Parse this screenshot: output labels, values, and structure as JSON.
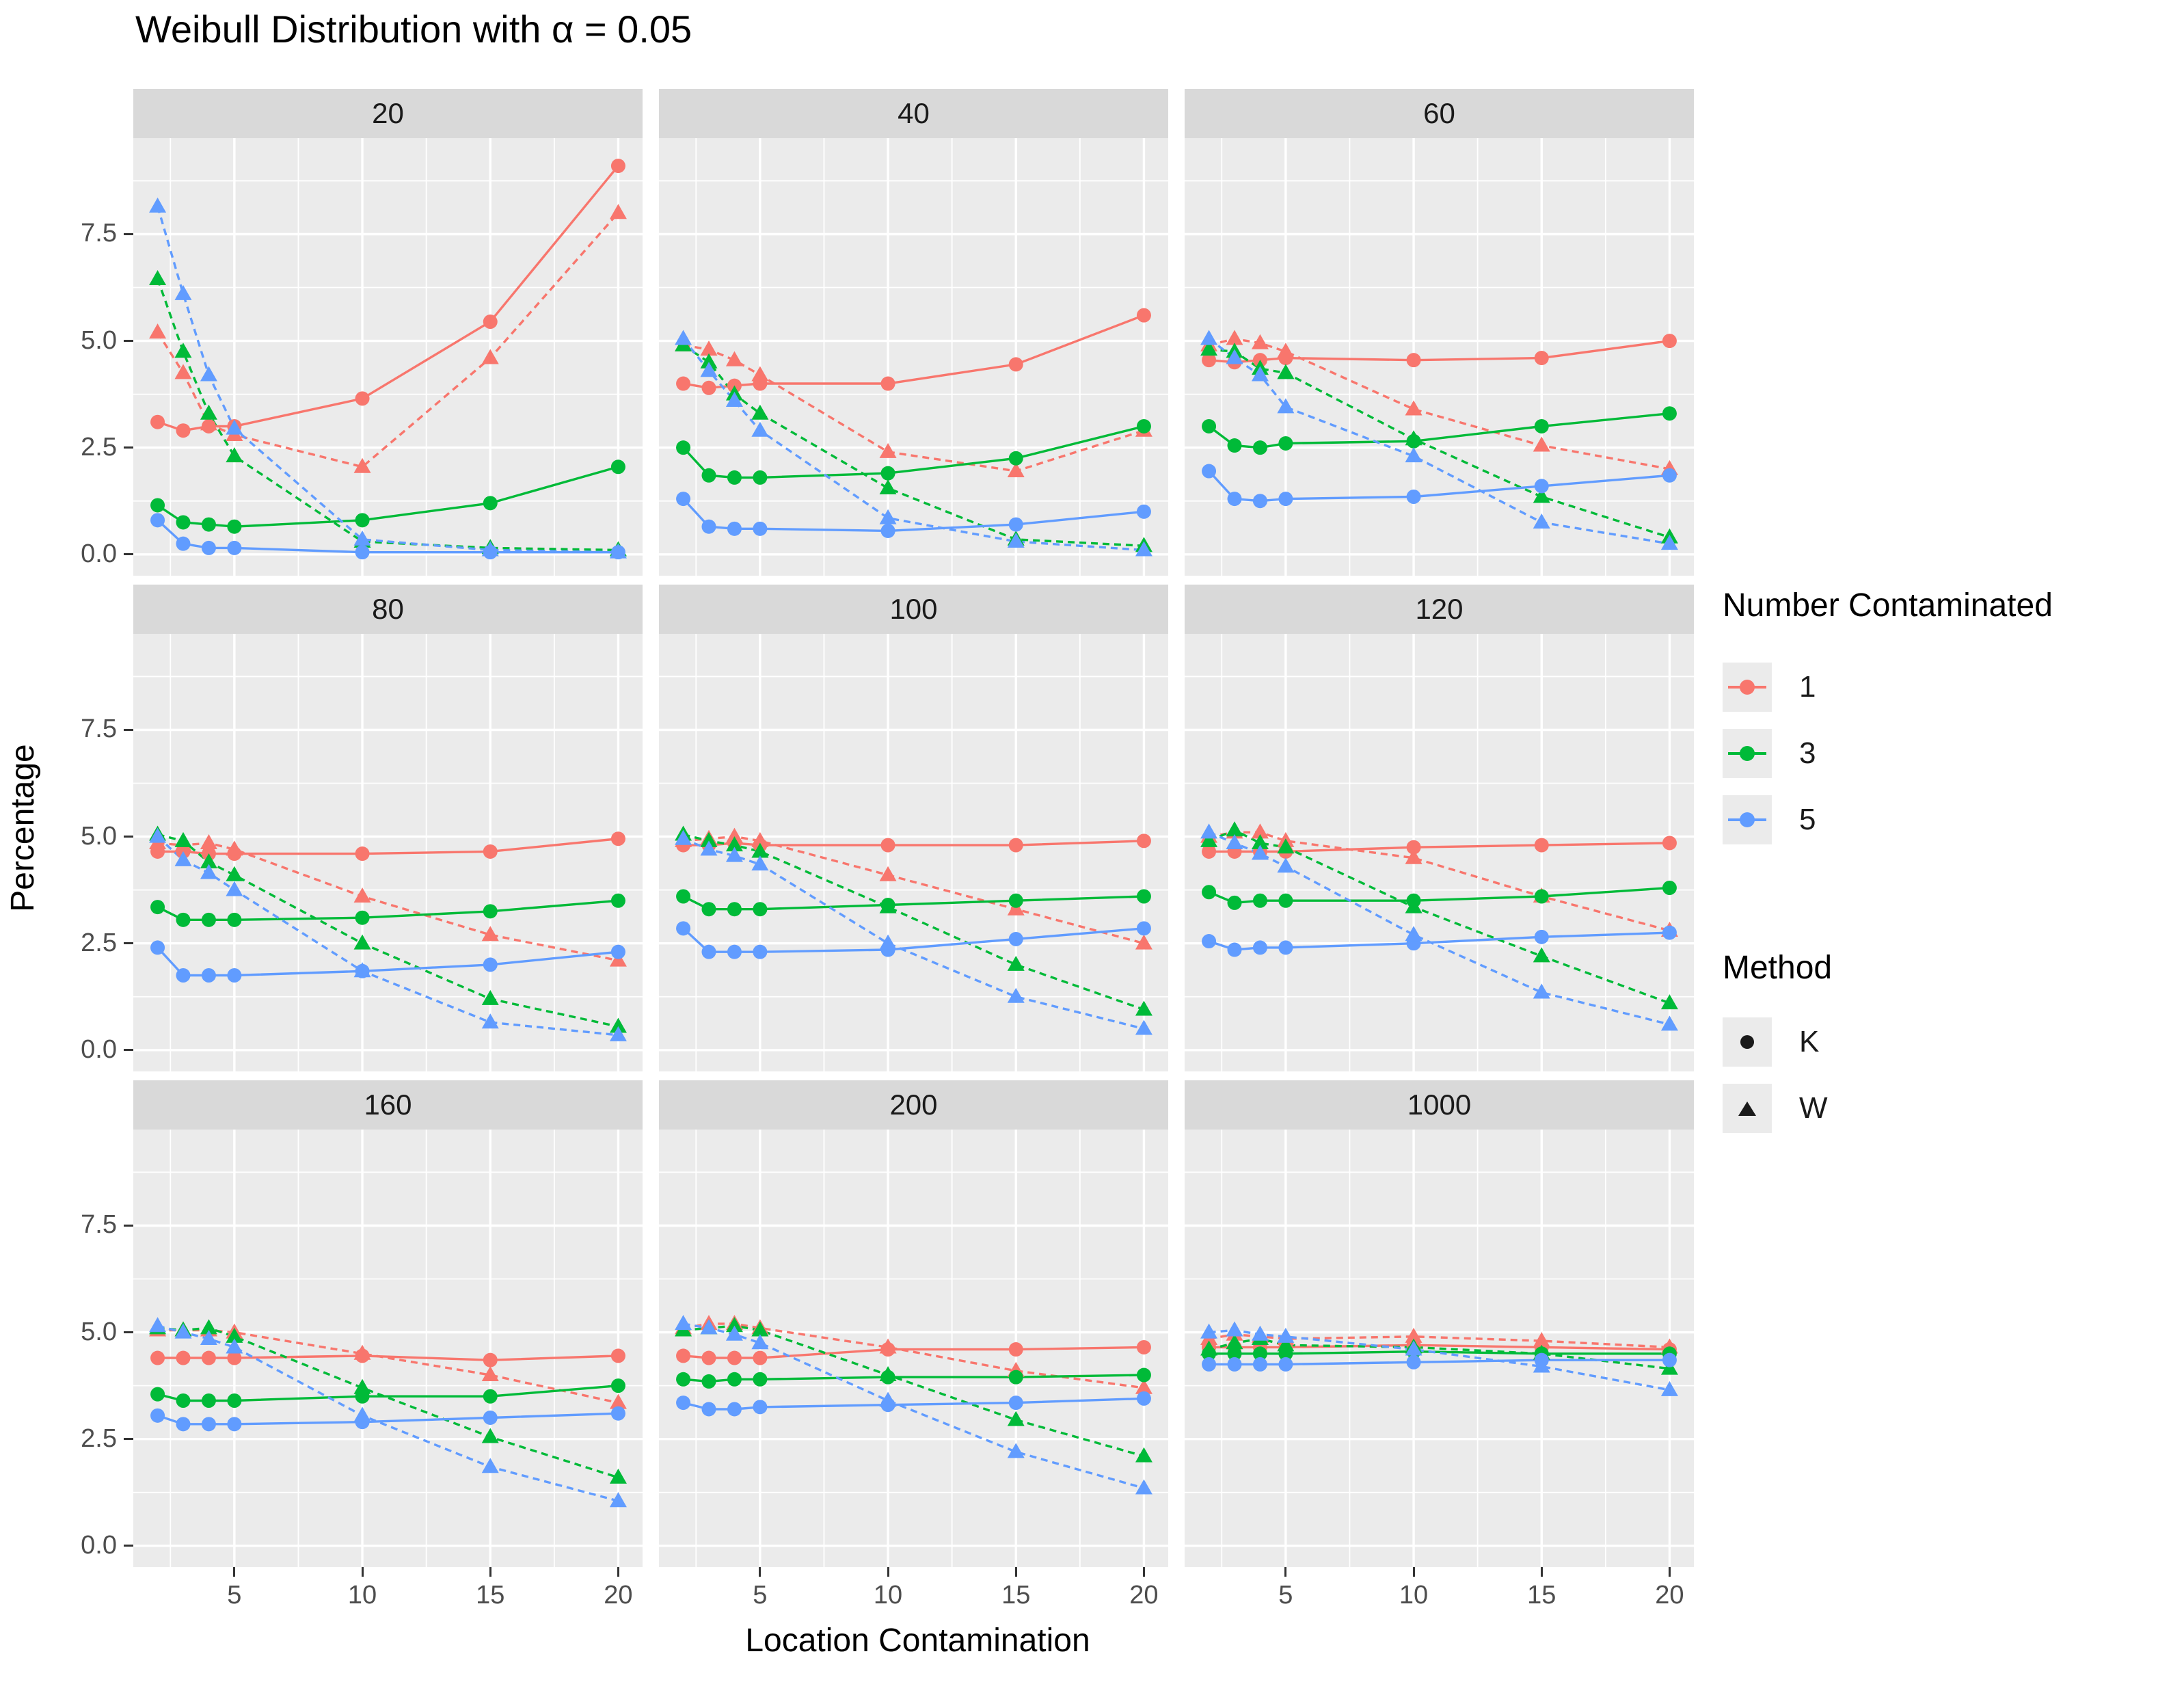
{
  "chart_data": {
    "type": "line",
    "title": "Weibull Distribution with α = 0.05",
    "xlabel": "Location Contamination",
    "ylabel": "Percentage",
    "x": [
      2,
      3,
      4,
      5,
      10,
      15,
      20
    ],
    "x_ticks": [
      5,
      10,
      15,
      20
    ],
    "x_tick_labels": [
      "5",
      "10",
      "15",
      "20"
    ],
    "y_ticks": [
      0.0,
      2.5,
      5.0,
      7.5
    ],
    "y_tick_labels": [
      "0.0",
      "2.5",
      "5.0",
      "7.5"
    ],
    "y_minor_ticks": [
      1.25,
      3.75,
      6.25,
      8.75
    ],
    "x_minor_ticks": [
      2.5,
      7.5,
      12.5,
      17.5
    ],
    "xlim": [
      1.05,
      20.95
    ],
    "ylim": [
      -0.5,
      9.75
    ],
    "grid": "on",
    "panel_bg": "#ebebeb",
    "strip_bg": "#d9d9d9",
    "grid_color": "#ffffff",
    "palette": {
      "1": "#F8766D",
      "3": "#00BA38",
      "5": "#619CFF"
    },
    "methods": {
      "K": {
        "shape": "circle",
        "dash": "none"
      },
      "W": {
        "shape": "triangle",
        "dash": "10 7"
      }
    },
    "series_order": [
      "1K",
      "1W",
      "3K",
      "3W",
      "5K",
      "5W"
    ],
    "legend": {
      "color_group": {
        "title": "Number Contaminated",
        "entries": [
          {
            "label": "1",
            "color": "#F8766D"
          },
          {
            "label": "3",
            "color": "#00BA38"
          },
          {
            "label": "5",
            "color": "#619CFF"
          }
        ]
      },
      "shape_group": {
        "title": "Method",
        "entries": [
          {
            "label": "K",
            "shape": "circle"
          },
          {
            "label": "W",
            "shape": "triangle"
          }
        ]
      }
    },
    "facets": [
      {
        "label": "20",
        "series": {
          "1K": [
            3.1,
            2.9,
            3.0,
            3.0,
            3.65,
            5.45,
            9.1
          ],
          "1W": [
            5.2,
            4.25,
            3.05,
            2.8,
            2.05,
            4.6,
            8.0
          ],
          "3K": [
            1.15,
            0.75,
            0.7,
            0.65,
            0.8,
            1.2,
            2.05
          ],
          "3W": [
            6.45,
            4.75,
            3.3,
            2.3,
            0.3,
            0.15,
            0.1
          ],
          "5K": [
            0.8,
            0.25,
            0.15,
            0.15,
            0.05,
            0.05,
            0.05
          ],
          "5W": [
            8.15,
            6.1,
            4.2,
            2.95,
            0.35,
            0.1,
            0.05
          ]
        }
      },
      {
        "label": "40",
        "series": {
          "1K": [
            4.0,
            3.9,
            3.95,
            4.0,
            4.0,
            4.45,
            5.6
          ],
          "1W": [
            4.9,
            4.8,
            4.55,
            4.2,
            2.4,
            1.95,
            2.9
          ],
          "3K": [
            2.5,
            1.85,
            1.8,
            1.8,
            1.9,
            2.25,
            3.0
          ],
          "3W": [
            4.9,
            4.5,
            3.75,
            3.3,
            1.55,
            0.35,
            0.2
          ],
          "5K": [
            1.3,
            0.65,
            0.6,
            0.6,
            0.55,
            0.7,
            1.0
          ],
          "5W": [
            5.05,
            4.3,
            3.6,
            2.9,
            0.85,
            0.3,
            0.1
          ]
        }
      },
      {
        "label": "60",
        "series": {
          "1K": [
            4.55,
            4.5,
            4.55,
            4.6,
            4.55,
            4.6,
            5.0
          ],
          "1W": [
            4.9,
            5.05,
            4.95,
            4.75,
            3.4,
            2.55,
            2.0
          ],
          "3K": [
            3.0,
            2.55,
            2.5,
            2.6,
            2.65,
            3.0,
            3.3
          ],
          "3W": [
            4.8,
            4.75,
            4.35,
            4.25,
            2.7,
            1.35,
            0.4
          ],
          "5K": [
            1.95,
            1.3,
            1.25,
            1.3,
            1.35,
            1.6,
            1.85
          ],
          "5W": [
            5.05,
            4.6,
            4.2,
            3.45,
            2.3,
            0.75,
            0.25
          ]
        }
      },
      {
        "label": "80",
        "series": {
          "1K": [
            4.65,
            4.65,
            4.6,
            4.6,
            4.6,
            4.65,
            4.95
          ],
          "1W": [
            4.85,
            4.8,
            4.85,
            4.7,
            3.6,
            2.7,
            2.1
          ],
          "3K": [
            3.35,
            3.05,
            3.05,
            3.05,
            3.1,
            3.25,
            3.5
          ],
          "3W": [
            5.05,
            4.9,
            4.4,
            4.1,
            2.5,
            1.2,
            0.55
          ],
          "5K": [
            2.4,
            1.75,
            1.75,
            1.75,
            1.85,
            2.0,
            2.3
          ],
          "5W": [
            5.0,
            4.45,
            4.15,
            3.75,
            1.85,
            0.65,
            0.35
          ]
        }
      },
      {
        "label": "100",
        "series": {
          "1K": [
            4.8,
            4.8,
            4.85,
            4.8,
            4.8,
            4.8,
            4.9
          ],
          "1W": [
            4.9,
            4.95,
            5.0,
            4.9,
            4.1,
            3.3,
            2.5
          ],
          "3K": [
            3.6,
            3.3,
            3.3,
            3.3,
            3.4,
            3.5,
            3.6
          ],
          "3W": [
            5.05,
            4.9,
            4.8,
            4.65,
            3.35,
            2.0,
            0.95
          ],
          "5K": [
            2.85,
            2.3,
            2.3,
            2.3,
            2.35,
            2.6,
            2.85
          ],
          "5W": [
            4.95,
            4.7,
            4.55,
            4.35,
            2.5,
            1.25,
            0.5
          ]
        }
      },
      {
        "label": "120",
        "series": {
          "1K": [
            4.65,
            4.65,
            4.65,
            4.65,
            4.75,
            4.8,
            4.85
          ],
          "1W": [
            5.0,
            5.1,
            5.1,
            4.9,
            4.5,
            3.6,
            2.8
          ],
          "3K": [
            3.7,
            3.45,
            3.5,
            3.5,
            3.5,
            3.6,
            3.8
          ],
          "3W": [
            4.9,
            5.15,
            4.85,
            4.75,
            3.35,
            2.2,
            1.1
          ],
          "5K": [
            2.55,
            2.35,
            2.4,
            2.4,
            2.5,
            2.65,
            2.75
          ],
          "5W": [
            5.1,
            4.85,
            4.6,
            4.3,
            2.7,
            1.35,
            0.6
          ]
        }
      },
      {
        "label": "160",
        "series": {
          "1K": [
            4.4,
            4.4,
            4.4,
            4.4,
            4.45,
            4.35,
            4.45
          ],
          "1W": [
            5.05,
            5.05,
            5.05,
            5.0,
            4.5,
            4.0,
            3.35
          ],
          "3K": [
            3.55,
            3.4,
            3.4,
            3.4,
            3.5,
            3.5,
            3.75
          ],
          "3W": [
            5.1,
            5.05,
            5.1,
            4.9,
            3.7,
            2.55,
            1.6
          ],
          "5K": [
            3.05,
            2.85,
            2.85,
            2.85,
            2.9,
            3.0,
            3.1
          ],
          "5W": [
            5.15,
            5.0,
            4.85,
            4.65,
            3.05,
            1.85,
            1.05
          ]
        }
      },
      {
        "label": "200",
        "series": {
          "1K": [
            4.45,
            4.4,
            4.4,
            4.4,
            4.6,
            4.6,
            4.65
          ],
          "1W": [
            5.1,
            5.2,
            5.2,
            5.1,
            4.65,
            4.1,
            3.7
          ],
          "3K": [
            3.9,
            3.85,
            3.9,
            3.9,
            3.95,
            3.95,
            4.0
          ],
          "3W": [
            5.05,
            5.1,
            5.15,
            5.05,
            4.0,
            2.95,
            2.1
          ],
          "5K": [
            3.35,
            3.2,
            3.2,
            3.25,
            3.3,
            3.35,
            3.45
          ],
          "5W": [
            5.2,
            5.1,
            4.95,
            4.75,
            3.4,
            2.2,
            1.35
          ]
        }
      },
      {
        "label": "1000",
        "series": {
          "1K": [
            4.65,
            4.65,
            4.65,
            4.65,
            4.7,
            4.65,
            4.6
          ],
          "1W": [
            4.85,
            4.95,
            4.9,
            4.85,
            4.9,
            4.8,
            4.65
          ],
          "3K": [
            4.5,
            4.5,
            4.5,
            4.5,
            4.55,
            4.5,
            4.5
          ],
          "3W": [
            4.6,
            4.75,
            4.85,
            4.7,
            4.65,
            4.5,
            4.15
          ],
          "5K": [
            4.25,
            4.25,
            4.25,
            4.25,
            4.3,
            4.35,
            4.35
          ],
          "5W": [
            5.0,
            5.05,
            4.95,
            4.9,
            4.6,
            4.2,
            3.65
          ]
        }
      }
    ]
  }
}
